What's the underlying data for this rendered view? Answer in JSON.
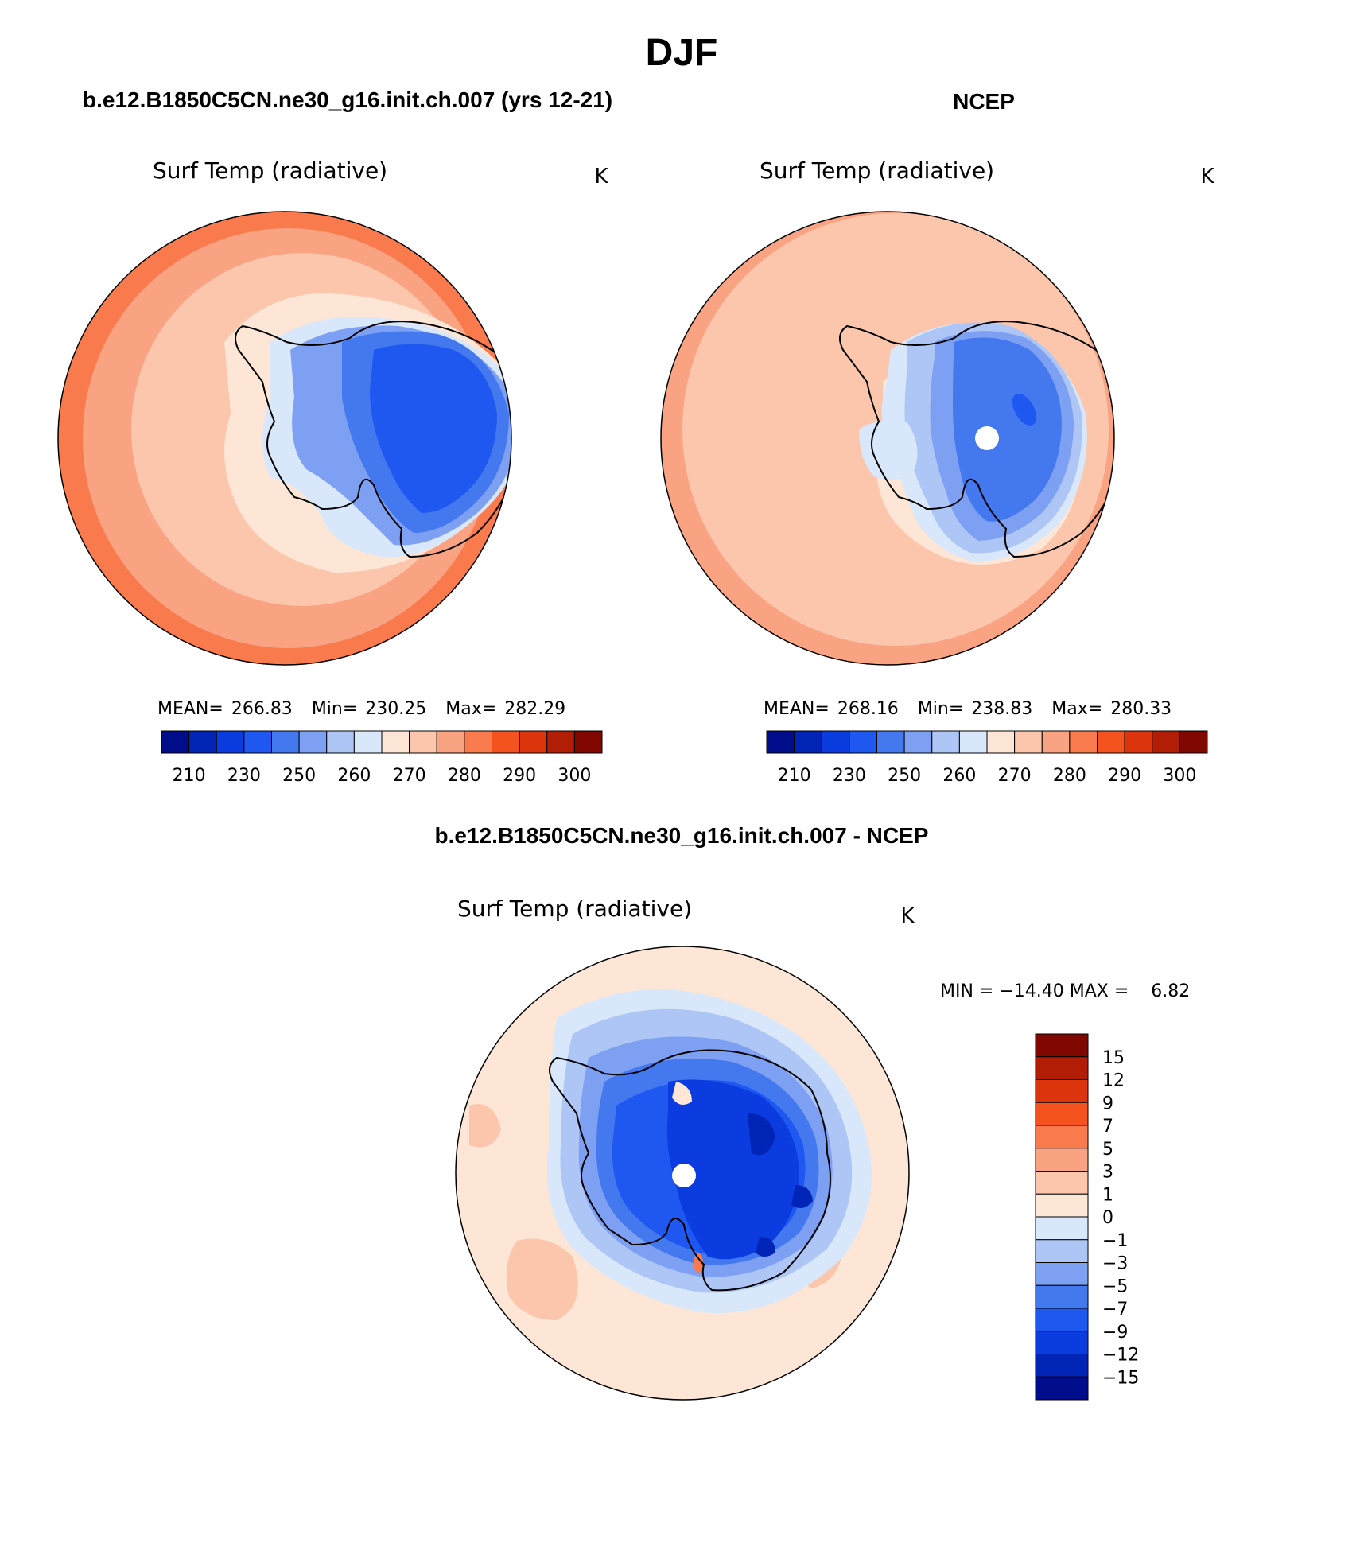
{
  "figure": {
    "title": "DJF"
  },
  "panels": [
    {
      "case_title": "b.e12.B1850C5CN.ne30_g16.init.ch.007 (yrs 12-21)",
      "variable": "Surf Temp (radiative)",
      "units": "K",
      "stats": {
        "mean_label": "MEAN=",
        "mean": "266.83",
        "min_label": "Min=",
        "min": "230.25",
        "max_label": "Max=",
        "max": "282.29"
      }
    },
    {
      "case_title": "NCEP",
      "variable": "Surf Temp (radiative)",
      "units": "K",
      "stats": {
        "mean_label": "MEAN=",
        "mean": "268.16",
        "min_label": "Min=",
        "min": "238.83",
        "max_label": "Max=",
        "max": "280.33"
      }
    },
    {
      "case_title": "b.e12.B1850C5CN.ne30_g16.init.ch.007 - NCEP",
      "variable": "Surf Temp (radiative)",
      "units": "K",
      "minmax": "MIN = −14.40 MAX =    6.82"
    }
  ],
  "colorbar_abs": {
    "orientation": "horizontal",
    "labels": [
      "210",
      "230",
      "250",
      "260",
      "270",
      "280",
      "290",
      "300"
    ],
    "colors": [
      "#000d8a",
      "#0024b5",
      "#0a3ce0",
      "#1f58f0",
      "#4478ee",
      "#7ea0f2",
      "#aec6f6",
      "#d8e8fa",
      "#fde6d6",
      "#fbc6ab",
      "#f9a383",
      "#f97a4c",
      "#f4531f",
      "#dc340c",
      "#b21e05",
      "#800600"
    ]
  },
  "colorbar_diff": {
    "orientation": "vertical",
    "labels": [
      "15",
      "12",
      "9",
      "7",
      "5",
      "3",
      "1",
      "0",
      "−1",
      "−3",
      "−5",
      "−7",
      "−9",
      "−12",
      "−15"
    ],
    "colors": [
      "#800600",
      "#b21e05",
      "#dc340c",
      "#f4531f",
      "#f97a4c",
      "#f9a383",
      "#fbc6ab",
      "#fde6d6",
      "#d8e8fa",
      "#aec6f6",
      "#7ea0f2",
      "#4478ee",
      "#1f58f0",
      "#0a3ce0",
      "#0024b5",
      "#000d8a"
    ]
  }
}
